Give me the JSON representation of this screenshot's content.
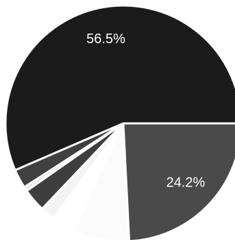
{
  "chart_data": {
    "type": "pie",
    "title": "",
    "slices": [
      {
        "value": 56.5,
        "label": "56.5%",
        "color": "#1b1b1b"
      },
      {
        "value": 2.6,
        "label": "",
        "color": "#404040"
      },
      {
        "value": 0.6,
        "label": "",
        "color": "#e8e8e8"
      },
      {
        "value": 3.2,
        "label": "",
        "color": "#3e3e3e"
      },
      {
        "value": 2.0,
        "label": "",
        "color": "#f4f4f4"
      },
      {
        "value": 3.2,
        "label": "",
        "color": "#ffffff"
      },
      {
        "value": 7.7,
        "label": "",
        "color": "#fbfbfb"
      },
      {
        "value": 24.2,
        "label": "24.2%",
        "color": "#4a4a4a"
      }
    ]
  }
}
